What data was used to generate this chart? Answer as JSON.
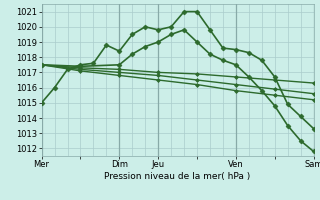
{
  "background_color": "#cceee8",
  "grid_color": "#aacccc",
  "line_color": "#2d6a2d",
  "marker_color": "#2d6a2d",
  "xlabel": "Pression niveau de la mer( hPa )",
  "ylim": [
    1011.5,
    1021.5
  ],
  "yticks": [
    1012,
    1013,
    1014,
    1015,
    1016,
    1017,
    1018,
    1019,
    1020,
    1021
  ],
  "xtick_labels": [
    "Mer",
    "",
    "Dim",
    "Jeu",
    "",
    "Ven",
    "",
    "Sam"
  ],
  "xtick_positions": [
    0,
    3,
    6,
    9,
    12,
    15,
    18,
    21
  ],
  "series": [
    {
      "x": [
        0,
        1,
        2,
        3,
        4,
        5,
        6,
        7,
        8,
        9,
        10,
        11,
        12,
        13,
        14,
        15,
        16,
        17,
        18,
        19,
        20,
        21
      ],
      "y": [
        1015.0,
        1016.0,
        1017.2,
        1017.5,
        1017.6,
        1018.8,
        1018.4,
        1019.5,
        1020.0,
        1019.8,
        1020.0,
        1021.0,
        1021.0,
        1019.8,
        1018.6,
        1018.5,
        1018.3,
        1017.8,
        1016.7,
        1014.9,
        1014.1,
        1013.3
      ],
      "marker": "D",
      "markersize": 2.5,
      "linewidth": 1.2
    },
    {
      "x": [
        0,
        3,
        6,
        7,
        8,
        9,
        10,
        11,
        12,
        13,
        14,
        15,
        16,
        17,
        18,
        19,
        20,
        21
      ],
      "y": [
        1017.5,
        1017.4,
        1017.5,
        1018.2,
        1018.7,
        1019.0,
        1019.5,
        1019.8,
        1019.0,
        1018.2,
        1017.8,
        1017.5,
        1016.7,
        1015.8,
        1014.8,
        1013.5,
        1012.5,
        1011.8
      ],
      "marker": "D",
      "markersize": 2.5,
      "linewidth": 1.2
    },
    {
      "x": [
        0,
        3,
        6,
        9,
        12,
        15,
        18,
        21
      ],
      "y": [
        1017.5,
        1017.3,
        1017.2,
        1017.0,
        1016.9,
        1016.7,
        1016.5,
        1016.3
      ],
      "marker": "D",
      "markersize": 2.0,
      "linewidth": 1.0
    },
    {
      "x": [
        0,
        3,
        6,
        9,
        12,
        15,
        18,
        21
      ],
      "y": [
        1017.5,
        1017.2,
        1017.0,
        1016.8,
        1016.5,
        1016.2,
        1015.9,
        1015.6
      ],
      "marker": "D",
      "markersize": 2.0,
      "linewidth": 1.0
    },
    {
      "x": [
        0,
        3,
        6,
        9,
        12,
        15,
        18,
        21
      ],
      "y": [
        1017.5,
        1017.1,
        1016.8,
        1016.5,
        1016.2,
        1015.8,
        1015.5,
        1015.2
      ],
      "marker": "D",
      "markersize": 2.0,
      "linewidth": 1.0
    }
  ],
  "vline_positions": [
    0,
    6,
    9,
    15,
    21
  ],
  "vline_color": "#88aaa8",
  "xlabel_fontsize": 6.5,
  "tick_fontsize": 6.0
}
